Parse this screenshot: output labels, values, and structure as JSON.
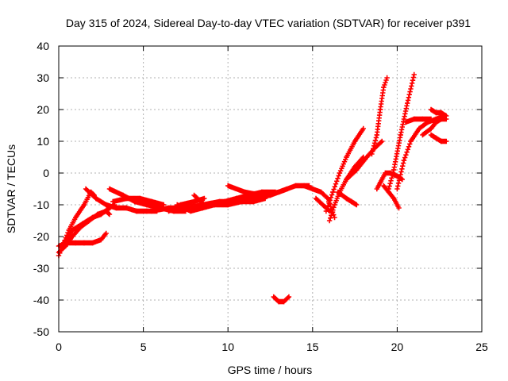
{
  "chart_data": {
    "type": "scatter",
    "title": "Day 315 of 2024, Sidereal Day-to-day VTEC variation (SDTVAR) for receiver p391",
    "xlabel": "GPS time / hours",
    "ylabel": "SDTVAR / TECUs",
    "xlim": [
      0,
      25
    ],
    "ylim": [
      -50,
      40
    ],
    "xticks": [
      0,
      5,
      10,
      15,
      20,
      25
    ],
    "yticks": [
      -50,
      -40,
      -30,
      -20,
      -10,
      0,
      10,
      20,
      30,
      40
    ],
    "xtick_labels": [
      "0",
      "5",
      "10",
      "15",
      "20",
      "25"
    ],
    "ytick_labels": [
      "-50",
      "-40",
      "-30",
      "-20",
      "-10",
      "0",
      "10",
      "20",
      "30",
      "40"
    ],
    "grid": true,
    "marker": "+",
    "color": "#ff0000",
    "series": [
      {
        "x": [
          0.0,
          0.3,
          0.6,
          1.0,
          1.5,
          1.9,
          2.1
        ],
        "y": [
          -26,
          -22,
          -18,
          -14,
          -10,
          -6,
          -7
        ]
      },
      {
        "x": [
          0.0,
          0.4,
          0.8,
          1.3,
          1.8,
          2.3,
          2.8,
          3.0
        ],
        "y": [
          -25,
          -23,
          -20,
          -17,
          -15,
          -13,
          -12,
          -13
        ]
      },
      {
        "x": [
          0.0,
          0.5,
          1.0,
          1.5,
          2.0,
          2.5,
          2.8
        ],
        "y": [
          -23,
          -22,
          -22,
          -22,
          -22,
          -21,
          -19
        ]
      },
      {
        "x": [
          0.3,
          0.8,
          1.4,
          2.0,
          2.5,
          3.0,
          3.3
        ],
        "y": [
          -22,
          -18,
          -16,
          -14,
          -13,
          -11,
          -10
        ]
      },
      {
        "x": [
          1.6,
          2.2,
          2.8,
          3.4,
          4.0,
          4.6,
          5.2,
          5.8
        ],
        "y": [
          -5,
          -8,
          -10,
          -11,
          -11,
          -12,
          -12,
          -12
        ]
      },
      {
        "x": [
          3.0,
          3.8,
          4.5,
          5.2,
          6.0,
          6.8,
          7.5
        ],
        "y": [
          -5,
          -7,
          -9,
          -10,
          -11,
          -12,
          -12
        ]
      },
      {
        "x": [
          3.2,
          4.0,
          4.8,
          5.5,
          6.2
        ],
        "y": [
          -9,
          -8,
          -8,
          -9,
          -10
        ]
      },
      {
        "x": [
          5.5,
          6.5,
          7.5,
          8.5,
          9.5,
          10.5,
          11.5,
          12.5,
          13.5
        ],
        "y": [
          -12,
          -11,
          -11,
          -10,
          -9,
          -9,
          -8,
          -7,
          -5
        ]
      },
      {
        "x": [
          6.5,
          7.2,
          8.0,
          8.6
        ],
        "y": [
          -12,
          -10,
          -9,
          -8
        ]
      },
      {
        "x": [
          7.0,
          7.8,
          8.5,
          9.2,
          10.0,
          10.8,
          11.5,
          12.2
        ],
        "y": [
          -10,
          -12,
          -11,
          -10,
          -10,
          -9,
          -9,
          -8
        ]
      },
      {
        "x": [
          8.0,
          8.6,
          9.2,
          9.8,
          10.5,
          11.2,
          12.0,
          12.8
        ],
        "y": [
          -7,
          -10,
          -10,
          -9,
          -8,
          -7,
          -6,
          -6
        ]
      },
      {
        "x": [
          10.0,
          11.0,
          12.0,
          13.0,
          14.0,
          14.8
        ],
        "y": [
          -4,
          -6,
          -7,
          -6,
          -4,
          -4
        ]
      },
      {
        "x": [
          12.7,
          13.0,
          13.3,
          13.6
        ],
        "y": [
          -39,
          -40.5,
          -40.5,
          -39
        ]
      },
      {
        "x": [
          14.5,
          15.0,
          15.5,
          15.9,
          16.3
        ],
        "y": [
          -4,
          -5,
          -6,
          -8,
          -14
        ]
      },
      {
        "x": [
          15.2,
          15.6,
          16.0
        ],
        "y": [
          -8,
          -10,
          -12
        ]
      },
      {
        "x": [
          15.8,
          16.2,
          16.6,
          17.0,
          17.5,
          18.0
        ],
        "y": [
          -12,
          -6,
          0,
          5,
          10,
          14
        ]
      },
      {
        "x": [
          16.0,
          16.3,
          16.6,
          17.0,
          17.5,
          18.0
        ],
        "y": [
          -15,
          -10,
          -6,
          -2,
          2,
          5
        ]
      },
      {
        "x": [
          16.5,
          17.0,
          17.3,
          17.6
        ],
        "y": [
          -6,
          -8,
          -9,
          -10
        ]
      },
      {
        "x": [
          17.0,
          17.6,
          18.2,
          18.7,
          19.1
        ],
        "y": [
          -2,
          1,
          5,
          8,
          10
        ]
      },
      {
        "x": [
          18.5,
          18.8,
          19.0,
          19.2,
          19.4
        ],
        "y": [
          6,
          12,
          20,
          27,
          30
        ]
      },
      {
        "x": [
          18.8,
          19.0,
          19.3,
          19.6,
          20.0,
          20.3
        ],
        "y": [
          -5,
          -3,
          0,
          0,
          -1,
          -2
        ]
      },
      {
        "x": [
          19.2,
          19.5,
          19.8,
          20.1
        ],
        "y": [
          -4,
          -6,
          -8,
          -11
        ]
      },
      {
        "x": [
          19.5,
          19.8,
          20.2,
          20.6,
          21.0
        ],
        "y": [
          -5,
          1,
          12,
          22,
          31
        ]
      },
      {
        "x": [
          20.0,
          20.4,
          20.8,
          21.3,
          21.8,
          22.3,
          22.8
        ],
        "y": [
          -5,
          4,
          10,
          14,
          16,
          17,
          18
        ]
      },
      {
        "x": [
          20.5,
          21.0,
          21.5,
          22.0
        ],
        "y": [
          16,
          17,
          17,
          17
        ]
      },
      {
        "x": [
          21.5,
          22.0,
          22.3,
          22.6,
          22.9
        ],
        "y": [
          12,
          14,
          16,
          17,
          17
        ]
      },
      {
        "x": [
          22.0,
          22.3,
          22.6,
          22.9
        ],
        "y": [
          12,
          11,
          10,
          10
        ]
      },
      {
        "x": [
          22.0,
          22.3,
          22.6,
          22.9
        ],
        "y": [
          20,
          19,
          19,
          18
        ]
      }
    ]
  }
}
